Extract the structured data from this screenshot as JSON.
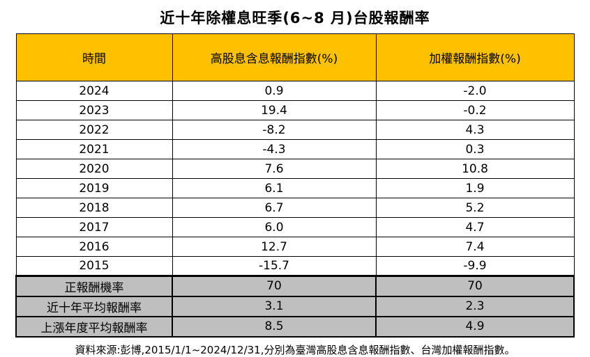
{
  "title": "近十年除權息旺季(6~8 月)台股報酬率",
  "table": {
    "headers": [
      "時間",
      "高股息含息報酬指數(%)",
      "加權報酬指數(%)"
    ],
    "rows": [
      [
        "2024",
        "0.9",
        "-2.0"
      ],
      [
        "2023",
        "19.4",
        "-0.2"
      ],
      [
        "2022",
        "-8.2",
        "4.3"
      ],
      [
        "2021",
        "-4.3",
        "0.3"
      ],
      [
        "2020",
        "7.6",
        "10.8"
      ],
      [
        "2019",
        "6.1",
        "1.9"
      ],
      [
        "2018",
        "6.7",
        "5.2"
      ],
      [
        "2017",
        "6.0",
        "4.7"
      ],
      [
        "2016",
        "12.7",
        "7.4"
      ],
      [
        "2015",
        "-15.7",
        "-9.9"
      ]
    ],
    "summary_rows": [
      [
        "正報酬機率",
        "70",
        "70"
      ],
      [
        "近十年平均報酬率",
        "3.1",
        "2.3"
      ],
      [
        "上漲年度平均報酬率",
        "8.5",
        "4.9"
      ]
    ]
  },
  "footer": "資料來源:彭博,2015/1/1~2024/12/31,分別為臺灣高股息含息報酬指數、台灣加權報酬指數。",
  "colors": {
    "header_bg": "#FFC000",
    "summary_bg": "#BFBFBF",
    "border": "#000000"
  },
  "chart_data": {
    "type": "table",
    "title": "近十年除權息旺季(6~8 月)台股報酬率",
    "columns": [
      "時間",
      "高股息含息報酬指數(%)",
      "加權報酬指數(%)"
    ],
    "years": [
      2024,
      2023,
      2022,
      2021,
      2020,
      2019,
      2018,
      2017,
      2016,
      2015
    ],
    "series": [
      {
        "name": "高股息含息報酬指數(%)",
        "values": [
          0.9,
          19.4,
          -8.2,
          -4.3,
          7.6,
          6.1,
          6.7,
          6.0,
          12.7,
          -15.7
        ]
      },
      {
        "name": "加權報酬指數(%)",
        "values": [
          -2.0,
          -0.2,
          4.3,
          0.3,
          10.8,
          1.9,
          5.2,
          4.7,
          7.4,
          -9.9
        ]
      }
    ],
    "summary": [
      {
        "label": "正報酬機率",
        "values": [
          70,
          70
        ]
      },
      {
        "label": "近十年平均報酬率",
        "values": [
          3.1,
          2.3
        ]
      },
      {
        "label": "上漲年度平均報酬率",
        "values": [
          8.5,
          4.9
        ]
      }
    ],
    "source_note": "資料來源:彭博,2015/1/1~2024/12/31,分別為臺灣高股息含息報酬指數、台灣加權報酬指數。"
  }
}
